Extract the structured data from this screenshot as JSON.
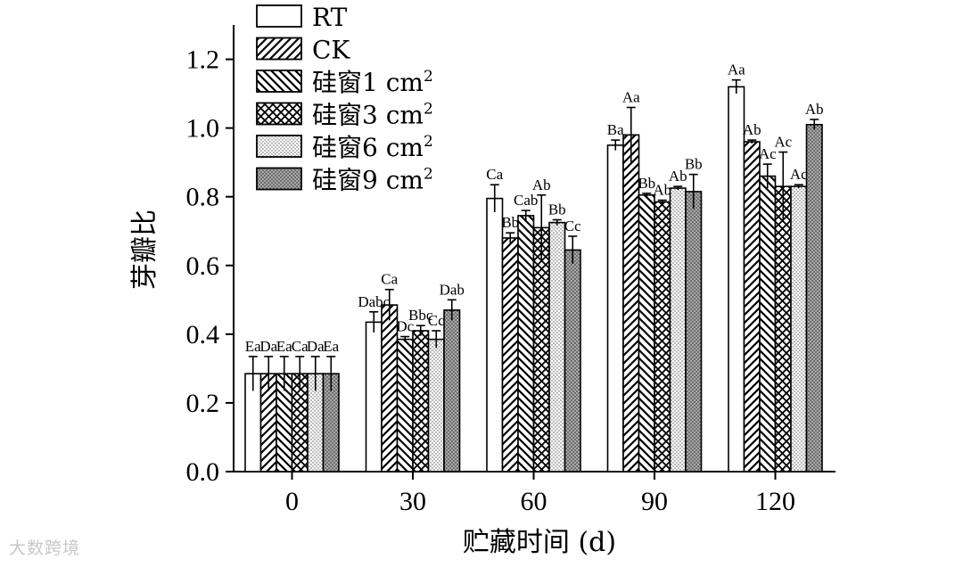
{
  "chart_data": {
    "type": "bar",
    "title": "",
    "xlabel": "贮藏时间 (d)",
    "ylabel": "芽瓣比",
    "ylim": [
      0,
      1.3
    ],
    "yticks": [
      "0.0",
      "0.2",
      "0.4",
      "0.6",
      "0.8",
      "1.0",
      "1.2"
    ],
    "categories": [
      "0",
      "30",
      "60",
      "90",
      "120"
    ],
    "legend_position": "top-left",
    "series": [
      {
        "name": "RT",
        "label": "RT",
        "sup": "",
        "pattern": "white",
        "values": [
          0.285,
          0.435,
          0.795,
          0.95,
          1.12
        ],
        "errors": [
          0.05,
          0.03,
          0.04,
          0.015,
          0.02
        ],
        "labels": [
          "Ea",
          "Dabc",
          "Ca",
          "Ba",
          "Aa"
        ]
      },
      {
        "name": "CK",
        "label": "CK",
        "sup": "",
        "pattern": "diag-right",
        "values": [
          0.285,
          0.485,
          0.68,
          0.98,
          0.96
        ],
        "errors": [
          0.05,
          0.045,
          0.015,
          0.08,
          0.005
        ],
        "labels": [
          "Da",
          "Ca",
          "Bb",
          "Aa",
          "Ab"
        ]
      },
      {
        "name": "硅窗1 cm²",
        "label": "硅窗1 cm",
        "sup": "2",
        "pattern": "diag-left",
        "values": [
          0.285,
          0.385,
          0.745,
          0.805,
          0.86
        ],
        "errors": [
          0.05,
          0.008,
          0.015,
          0.005,
          0.035
        ],
        "labels": [
          "Ea",
          "Dc",
          "Cab",
          "Bb",
          "Ac"
        ]
      },
      {
        "name": "硅窗3 cm²",
        "label": "硅窗3 cm",
        "sup": "2",
        "pattern": "cross",
        "values": [
          0.285,
          0.41,
          0.71,
          0.785,
          0.83
        ],
        "errors": [
          0.05,
          0.015,
          0.095,
          0.005,
          0.1
        ],
        "labels": [
          "Ca",
          "Bbc",
          "Ab",
          "Ab",
          "Ac"
        ]
      },
      {
        "name": "硅窗6 cm²",
        "label": "硅窗6 cm",
        "sup": "2",
        "pattern": "dots",
        "values": [
          0.285,
          0.385,
          0.725,
          0.825,
          0.83
        ],
        "errors": [
          0.05,
          0.025,
          0.008,
          0.005,
          0.005
        ],
        "labels": [
          "Da",
          "Cc",
          "Bb",
          "Ab",
          "Ac"
        ]
      },
      {
        "name": "硅窗9 cm²",
        "label": "硅窗9 cm",
        "sup": "2",
        "pattern": "dense",
        "values": [
          0.285,
          0.47,
          0.645,
          0.815,
          1.01
        ],
        "errors": [
          0.05,
          0.03,
          0.04,
          0.05,
          0.015
        ],
        "labels": [
          "Ea",
          "Dab",
          "Cc",
          "Bb",
          "Ab"
        ]
      }
    ]
  },
  "watermark": "大数跨境"
}
